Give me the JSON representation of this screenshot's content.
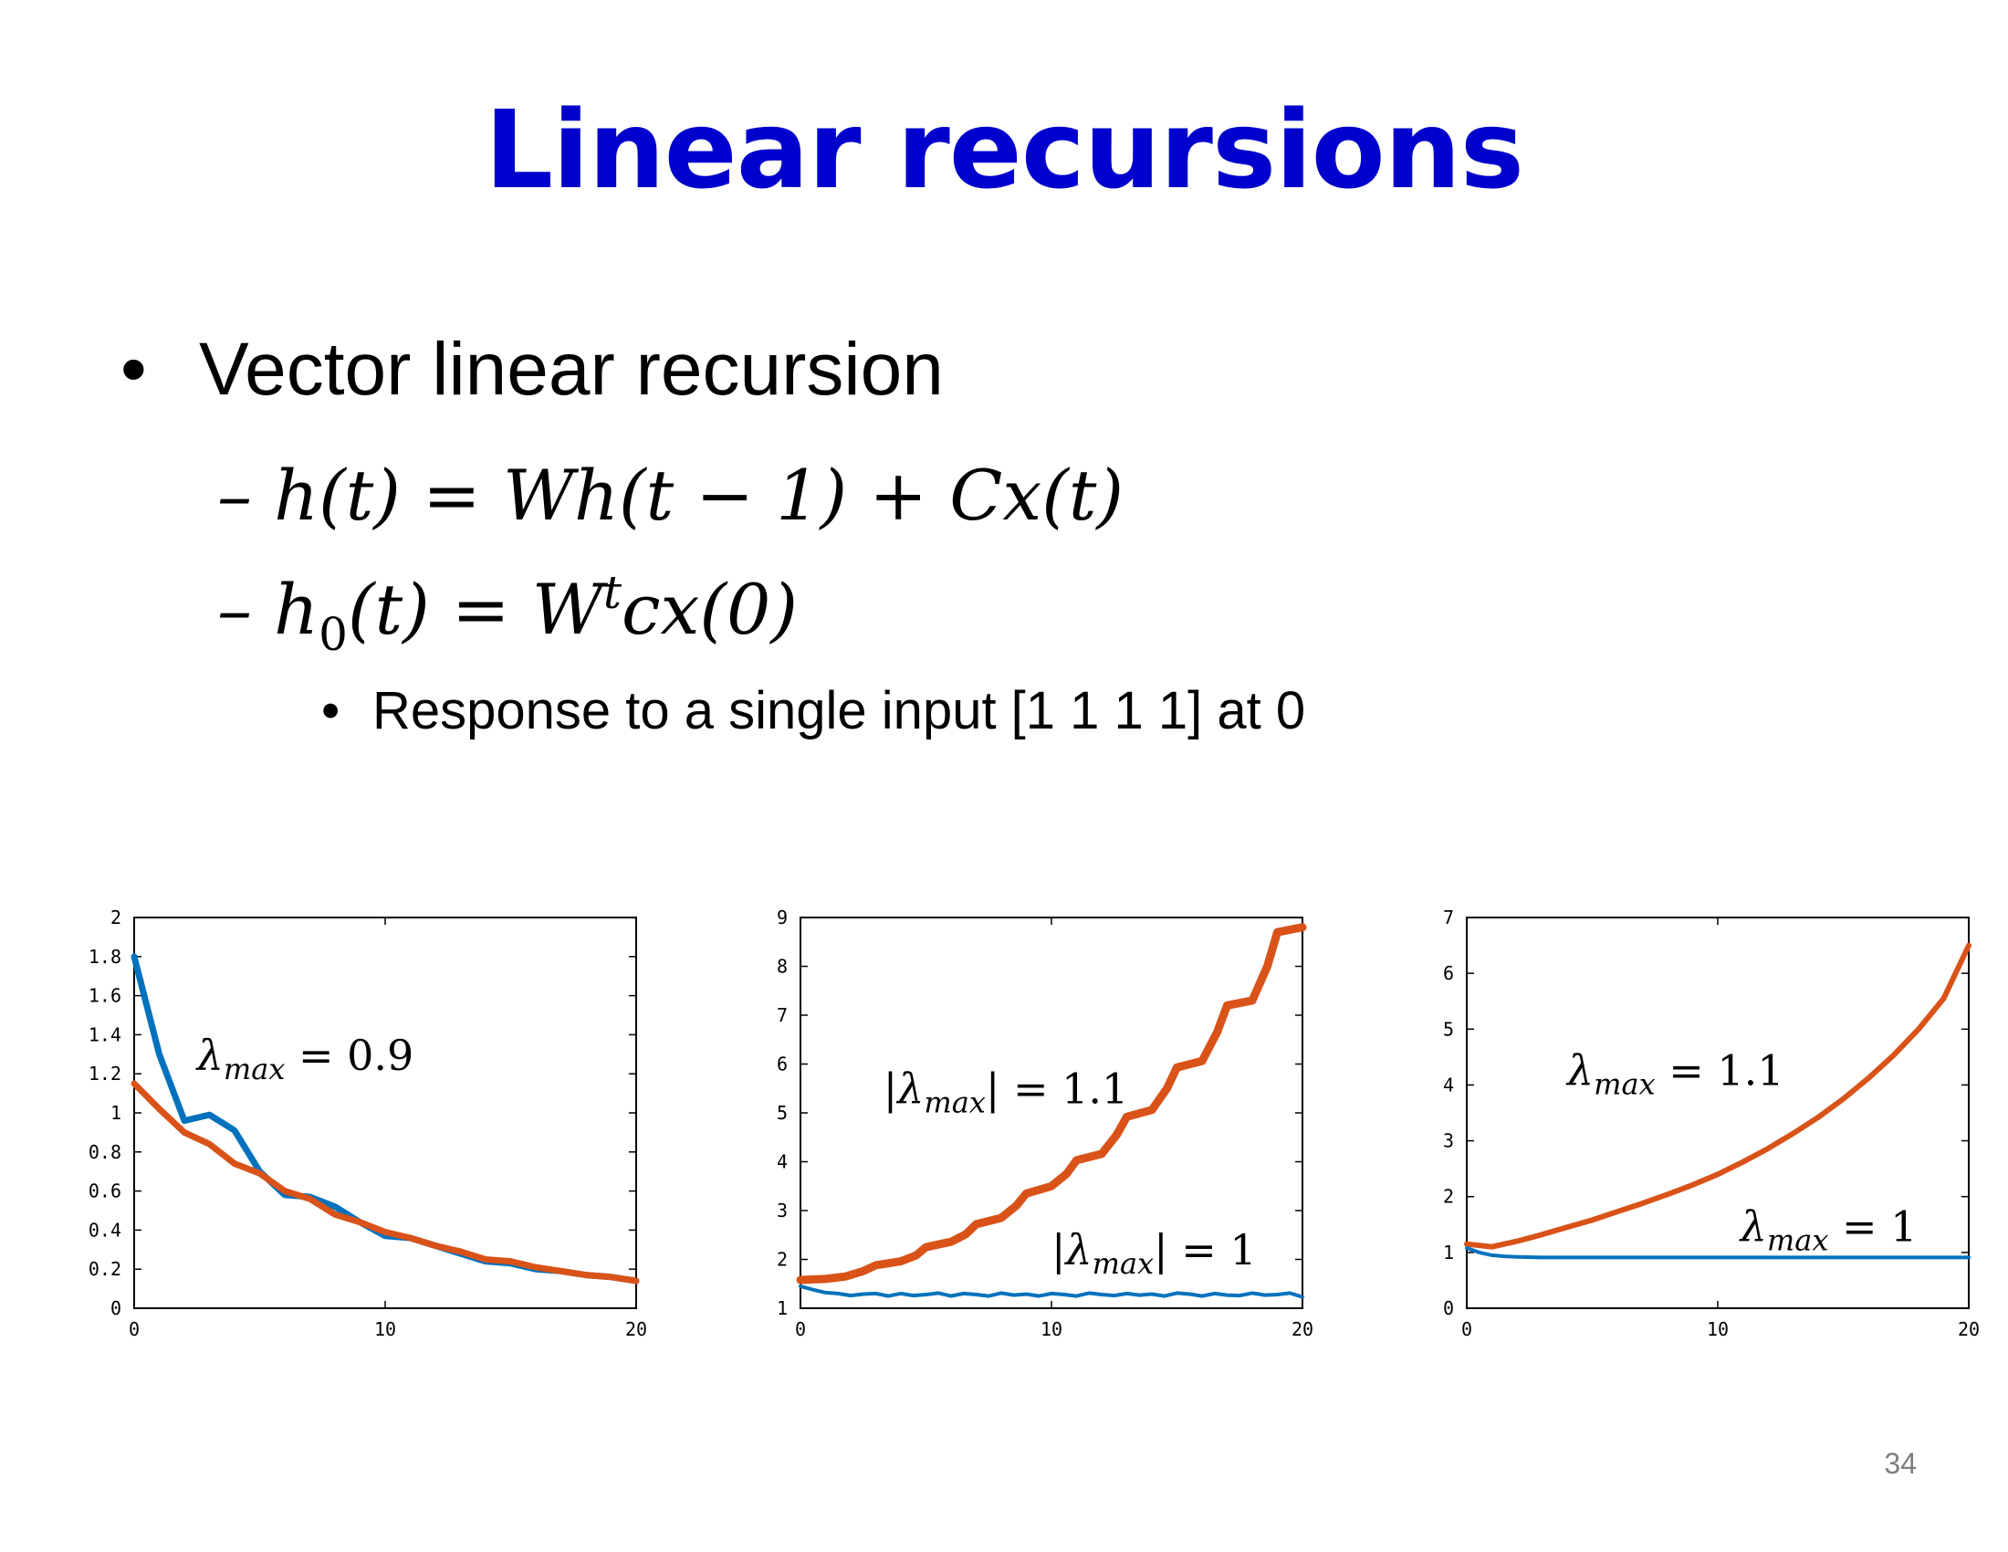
{
  "slide": {
    "title": "Linear recursions",
    "bullet": "Vector linear recursion",
    "sub_bullet": "Response to a single input [1 1 1 1] at 0",
    "equation1": "– h(t) = Wh(t − 1) + Cx(t)",
    "equation2_parts": {
      "dash": "– ",
      "h": "h",
      "sub0": "0",
      "mid": "(t) = W",
      "sup_t": "t",
      "end": "cx(0)"
    },
    "page_number": "34"
  },
  "colors": {
    "title": "#0000cc",
    "series_blue": "#0072bd",
    "series_orange": "#d95319"
  },
  "chart_data": [
    {
      "type": "line",
      "xlim": [
        0,
        20
      ],
      "ylim": [
        0,
        2
      ],
      "xticks": [
        0,
        10,
        20
      ],
      "xtick_labels": [
        "0",
        "10",
        "20"
      ],
      "yticks": [
        0,
        0.2,
        0.4,
        0.6,
        0.8,
        1,
        1.2,
        1.4,
        1.6,
        1.8,
        2
      ],
      "ytick_labels": [
        "0",
        "0.2",
        "0.4",
        "0.6",
        "0.8",
        "1",
        "1.2",
        "1.4",
        "1.6",
        "1.8",
        "2"
      ],
      "annotations": [
        {
          "prefix": "",
          "lam": "λ",
          "sub": "max",
          "suffix": " = 0.9",
          "x": 2.5,
          "y": 1.22
        }
      ],
      "series": [
        {
          "color": "#0072bd",
          "width": 7,
          "x": [
            0,
            1,
            2,
            3,
            4,
            5,
            6,
            7,
            8,
            9,
            10,
            11,
            12,
            13,
            14,
            15,
            16,
            17,
            18,
            19,
            20
          ],
          "y": [
            1.8,
            1.3,
            0.96,
            0.99,
            0.91,
            0.7,
            0.58,
            0.57,
            0.52,
            0.44,
            0.37,
            0.36,
            0.32,
            0.28,
            0.24,
            0.23,
            0.2,
            0.19,
            0.17,
            0.16,
            0.14
          ]
        },
        {
          "color": "#d95319",
          "width": 7,
          "x": [
            0,
            1,
            2,
            3,
            4,
            5,
            6,
            7,
            8,
            9,
            10,
            11,
            12,
            13,
            14,
            15,
            16,
            17,
            18,
            19,
            20
          ],
          "y": [
            1.15,
            1.02,
            0.9,
            0.84,
            0.74,
            0.69,
            0.6,
            0.56,
            0.48,
            0.44,
            0.39,
            0.36,
            0.32,
            0.29,
            0.25,
            0.24,
            0.21,
            0.19,
            0.17,
            0.16,
            0.14
          ]
        }
      ]
    },
    {
      "type": "line",
      "xlim": [
        0,
        20
      ],
      "ylim": [
        1,
        9
      ],
      "xticks": [
        0,
        10,
        20
      ],
      "xtick_labels": [
        "0",
        "10",
        "20"
      ],
      "yticks": [
        1,
        2,
        3,
        4,
        5,
        6,
        7,
        8,
        9
      ],
      "ytick_labels": [
        "1",
        "2",
        "3",
        "4",
        "5",
        "6",
        "7",
        "8",
        "9"
      ],
      "annotations": [
        {
          "prefix": "|",
          "lam": "λ",
          "sub": "max",
          "suffix": "| = 1.1",
          "x": 3.3,
          "y": 5.2
        },
        {
          "prefix": "|",
          "lam": "λ",
          "sub": "max",
          "suffix": "| = 1",
          "x": 10,
          "y": 1.9
        }
      ],
      "series": [
        {
          "color": "#d95319",
          "width": 9,
          "x": [
            0,
            1,
            1.8,
            2.5,
            3,
            4,
            4.6,
            5,
            6,
            6.6,
            7,
            8,
            8.6,
            9,
            10,
            10.6,
            11,
            12,
            12.6,
            13,
            14,
            14.6,
            15,
            16,
            16.6,
            17,
            18,
            18.6,
            19,
            20
          ],
          "y": [
            1.58,
            1.6,
            1.65,
            1.76,
            1.88,
            1.96,
            2.08,
            2.25,
            2.36,
            2.52,
            2.72,
            2.85,
            3.1,
            3.35,
            3.5,
            3.75,
            4.03,
            4.16,
            4.55,
            4.92,
            5.06,
            5.5,
            5.93,
            6.06,
            6.65,
            7.2,
            7.3,
            8.0,
            8.7,
            8.8
          ]
        },
        {
          "color": "#0072bd",
          "width": 4,
          "x": [
            0,
            0.5,
            1,
            1.5,
            2,
            2.5,
            3,
            3.5,
            4,
            4.5,
            5,
            5.5,
            6,
            6.5,
            7,
            7.5,
            8,
            8.5,
            9,
            9.5,
            10,
            10.5,
            11,
            11.5,
            12,
            12.5,
            13,
            13.5,
            14,
            14.5,
            15,
            15.5,
            16,
            16.5,
            17,
            17.5,
            18,
            18.5,
            19,
            19.5,
            20
          ],
          "y": [
            1.45,
            1.38,
            1.32,
            1.3,
            1.26,
            1.29,
            1.3,
            1.25,
            1.3,
            1.26,
            1.28,
            1.31,
            1.25,
            1.3,
            1.28,
            1.25,
            1.31,
            1.27,
            1.29,
            1.25,
            1.3,
            1.28,
            1.25,
            1.31,
            1.28,
            1.26,
            1.3,
            1.27,
            1.29,
            1.25,
            1.31,
            1.29,
            1.25,
            1.3,
            1.27,
            1.26,
            1.31,
            1.27,
            1.28,
            1.31,
            1.23
          ]
        }
      ]
    },
    {
      "type": "line",
      "xlim": [
        0,
        20
      ],
      "ylim": [
        0,
        7
      ],
      "xticks": [
        0,
        10,
        20
      ],
      "xtick_labels": [
        "0",
        "10",
        "20"
      ],
      "yticks": [
        0,
        1,
        2,
        3,
        4,
        5,
        6,
        7
      ],
      "ytick_labels": [
        "0",
        "1",
        "2",
        "3",
        "4",
        "5",
        "6",
        "7"
      ],
      "annotations": [
        {
          "prefix": "",
          "lam": "λ",
          "sub": "max",
          "suffix": " = 1.1",
          "x": 4,
          "y": 4.0
        },
        {
          "prefix": "",
          "lam": "λ",
          "sub": "max",
          "suffix": " = 1",
          "x": 10.9,
          "y": 1.2
        }
      ],
      "series": [
        {
          "color": "#d95319",
          "width": 6,
          "x": [
            0,
            1,
            2,
            3,
            4,
            5,
            6,
            7,
            8,
            9,
            10,
            11,
            12,
            13,
            14,
            15,
            16,
            17,
            18,
            19,
            20
          ],
          "y": [
            1.15,
            1.1,
            1.2,
            1.32,
            1.45,
            1.58,
            1.73,
            1.88,
            2.04,
            2.21,
            2.4,
            2.62,
            2.86,
            3.13,
            3.42,
            3.75,
            4.12,
            4.53,
            5.0,
            5.55,
            6.5
          ]
        },
        {
          "color": "#0072bd",
          "width": 4,
          "x": [
            0,
            0.5,
            1,
            1.5,
            2,
            3,
            4,
            5,
            6,
            8,
            10,
            12,
            14,
            16,
            18,
            20
          ],
          "y": [
            1.08,
            1.0,
            0.95,
            0.93,
            0.92,
            0.91,
            0.91,
            0.91,
            0.91,
            0.91,
            0.91,
            0.91,
            0.91,
            0.91,
            0.91,
            0.91
          ]
        }
      ]
    }
  ]
}
